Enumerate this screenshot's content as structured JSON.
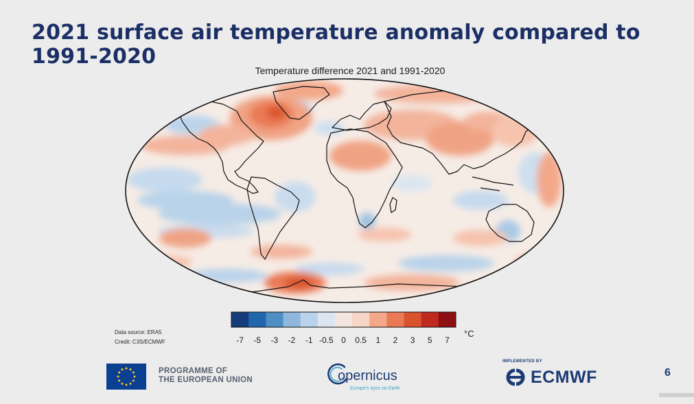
{
  "slide": {
    "title": "2021 surface air temperature anomaly compared to 1991-2020",
    "page_number": "6"
  },
  "map": {
    "title": "Temperature difference 2021 and 1991-2020",
    "projection": "Robinson",
    "variable": "surface air temperature anomaly",
    "background_color": "#f6ece6"
  },
  "legend": {
    "unit": "°C",
    "ticks": [
      "-7",
      "-5",
      "-3",
      "-2",
      "-1",
      "-0.5",
      "0",
      "0.5",
      "1",
      "2",
      "3",
      "5",
      "7"
    ],
    "colors": [
      "#143c78",
      "#2166ac",
      "#4d8ec4",
      "#8fb7dc",
      "#b9d3ea",
      "#dbe6f1",
      "#f3e6e0",
      "#f6d4c6",
      "#f3a88a",
      "#ea7a55",
      "#d9532c",
      "#c0291d",
      "#8e0f12"
    ]
  },
  "credits": {
    "data_source": "Data source: ERA5",
    "credit": "Credit: C3S/ECMWF"
  },
  "footer": {
    "eu_line1": "PROGRAMME OF",
    "eu_line2": "THE EUROPEAN UNION",
    "copernicus_name": "opernicus",
    "copernicus_tagline": "Europe's eyes on Earth",
    "implemented_by": "IMPLEMENTED BY",
    "ecmwf_name": "ECMWF",
    "colors": {
      "navy": "#1c3b74",
      "eu_blue": "#0b3f91",
      "eu_gold": "#f5cc2a",
      "copernicus_cyan": "#3ba4c8"
    }
  }
}
